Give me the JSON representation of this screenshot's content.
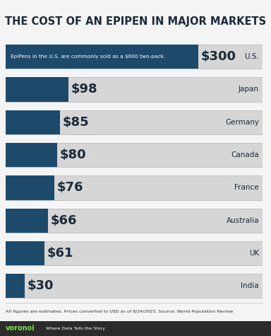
{
  "chart_data": {
    "type": "bar",
    "orientation": "horizontal",
    "title": "THE COST OF AN EPIPEN IN MAJOR MARKETS",
    "categories": [
      "U.S.",
      "Japan",
      "Germany",
      "Canada",
      "France",
      "Australia",
      "UK",
      "India"
    ],
    "values": [
      300,
      98,
      85,
      80,
      76,
      66,
      61,
      30
    ],
    "value_labels": [
      "$300",
      "$98",
      "$85",
      "$80",
      "$76",
      "$66",
      "$61",
      "$30"
    ],
    "data_labels": true,
    "tick_labels": false,
    "color": "#1d4a6b",
    "xlim": [
      0,
      400
    ],
    "grid": false,
    "annotation": "EpiPens in the U.S. are commonly sold as a $600 two-pack.",
    "footnote": "All figures are estimates. Prices converted to USD as of 8/24/2023. Source: World Population Review",
    "brand": "voronoi",
    "tagline": "Where Data Tells the Story"
  }
}
